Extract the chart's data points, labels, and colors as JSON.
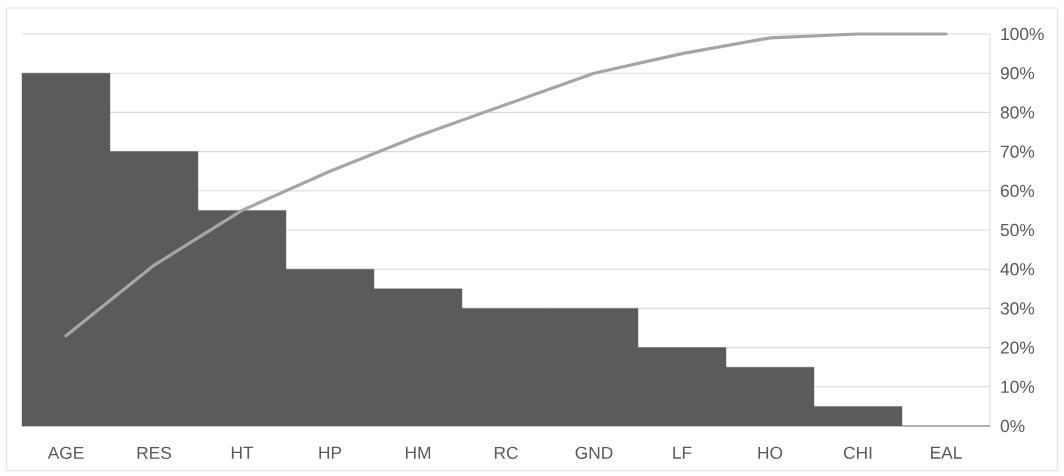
{
  "chart_data": {
    "type": "bar",
    "categories": [
      "AGE",
      "RES",
      "HT",
      "HP",
      "HM",
      "RC",
      "GND",
      "LF",
      "HO",
      "CHI",
      "EAL"
    ],
    "series": [
      {
        "color": "#5b5b5b",
        "values": [
          90,
          70,
          55,
          40,
          35,
          30,
          30,
          20,
          15,
          5,
          0
        ]
      },
      {
        "type": "line",
        "color": "#a5a5a5",
        "values": [
          23,
          41,
          55,
          65,
          74,
          82,
          90,
          95,
          99,
          100,
          100
        ]
      }
    ],
    "ylim": [
      0,
      100
    ],
    "yticks": [
      {
        "value": 0,
        "label": "0%"
      },
      {
        "value": 10,
        "label": "10%"
      },
      {
        "value": 20,
        "label": "20%"
      },
      {
        "value": 30,
        "label": "30%"
      },
      {
        "value": 40,
        "label": "40%"
      },
      {
        "value": 50,
        "label": "50%"
      },
      {
        "value": 60,
        "label": "60%"
      },
      {
        "value": 70,
        "label": "70%"
      },
      {
        "value": 80,
        "label": "80%"
      },
      {
        "value": 90,
        "label": "90%"
      },
      {
        "value": 100,
        "label": "100%"
      }
    ],
    "grid": "y",
    "marker": "none"
  }
}
